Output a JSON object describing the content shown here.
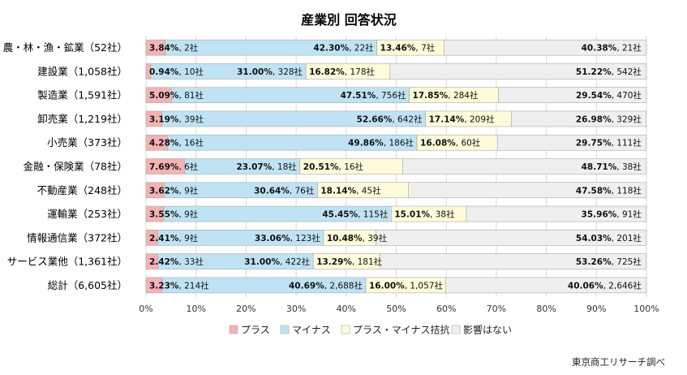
{
  "chart_data": {
    "type": "bar",
    "stacked": true,
    "orientation": "horizontal",
    "title": "産業別 回答状況",
    "xlim": [
      0,
      100
    ],
    "x_ticks": [
      "0%",
      "10%",
      "20%",
      "30%",
      "40%",
      "50%",
      "60%",
      "70%",
      "80%",
      "90%",
      "100%"
    ],
    "grid": true,
    "legend_position": "bottom",
    "categories": [
      "農・林・漁・鉱業（52社）",
      "建設業（1,058社）",
      "製造業（1,591社）",
      "卸売業（1,219社）",
      "小売業（373社）",
      "金融・保険業（78社）",
      "不動産業（248社）",
      "運輸業（253社）",
      "情報通信業（372社）",
      "サービス業他（1,361社）",
      "総計（6,605社）"
    ],
    "series": [
      {
        "name": "プラス",
        "color": "#f4b3b3",
        "values": [
          3.84,
          0.94,
          5.09,
          3.19,
          4.28,
          7.69,
          3.62,
          3.55,
          2.41,
          2.42,
          3.23
        ],
        "counts": [
          "2社",
          "10社",
          "81社",
          "39社",
          "16社",
          "6社",
          "9社",
          "9社",
          "9社",
          "33社",
          "214社"
        ]
      },
      {
        "name": "マイナス",
        "color": "#bfe3f4",
        "values": [
          42.3,
          31.0,
          47.51,
          52.66,
          49.86,
          23.07,
          30.64,
          45.45,
          33.06,
          31.0,
          40.69
        ],
        "counts": [
          "22社",
          "328社",
          "756社",
          "642社",
          "186社",
          "18社",
          "76社",
          "115社",
          "123社",
          "422社",
          "2,688社"
        ]
      },
      {
        "name": "プラス・マイナス拮抗",
        "color": "#fdfbd9",
        "values": [
          13.46,
          16.82,
          17.85,
          17.14,
          16.08,
          20.51,
          18.14,
          15.01,
          10.48,
          13.29,
          16.0
        ],
        "counts": [
          "7社",
          "178社",
          "284社",
          "209社",
          "60社",
          "16社",
          "45社",
          "38社",
          "39社",
          "181社",
          "1,057社"
        ]
      },
      {
        "name": "影響はない",
        "color": "#efefef",
        "values": [
          40.38,
          51.22,
          29.54,
          26.98,
          29.75,
          48.71,
          47.58,
          35.96,
          54.03,
          53.26,
          40.06
        ],
        "counts": [
          "21社",
          "542社",
          "470社",
          "329社",
          "111社",
          "38社",
          "118社",
          "91社",
          "201社",
          "725社",
          "2,646社"
        ]
      }
    ]
  },
  "source": "東京商工リサーチ調べ"
}
